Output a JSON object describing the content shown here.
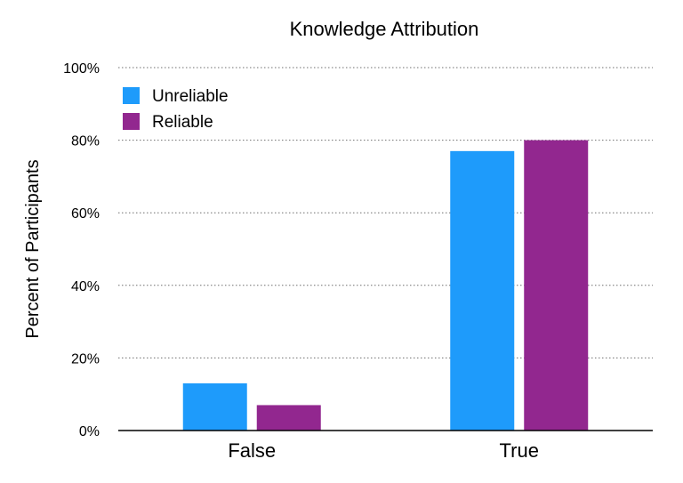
{
  "chart_data": {
    "type": "bar",
    "title": "Knowledge Attribution",
    "xlabel": "",
    "ylabel": "Percent of Participants",
    "categories": [
      "False",
      "True"
    ],
    "series": [
      {
        "name": "Unreliable",
        "color": "#1e9bfb",
        "values": [
          13,
          77
        ]
      },
      {
        "name": "Reliable",
        "color": "#92278f",
        "values": [
          7,
          80
        ]
      }
    ],
    "ylim": [
      0,
      100
    ],
    "yticks": [
      "0%",
      "20%",
      "40%",
      "60%",
      "80%",
      "100%"
    ],
    "ytick_values": [
      0,
      20,
      40,
      60,
      80,
      100
    ],
    "grid": true,
    "legend_position": "top-left"
  }
}
